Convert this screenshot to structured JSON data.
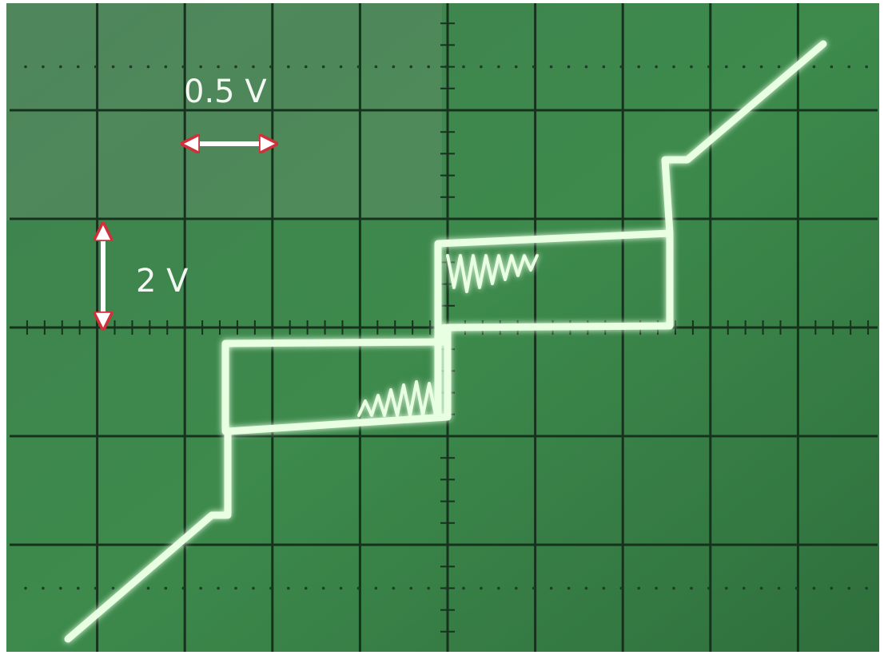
{
  "annotations": {
    "horizontal_scale": "0.5 V",
    "vertical_scale": "2 V"
  }
}
